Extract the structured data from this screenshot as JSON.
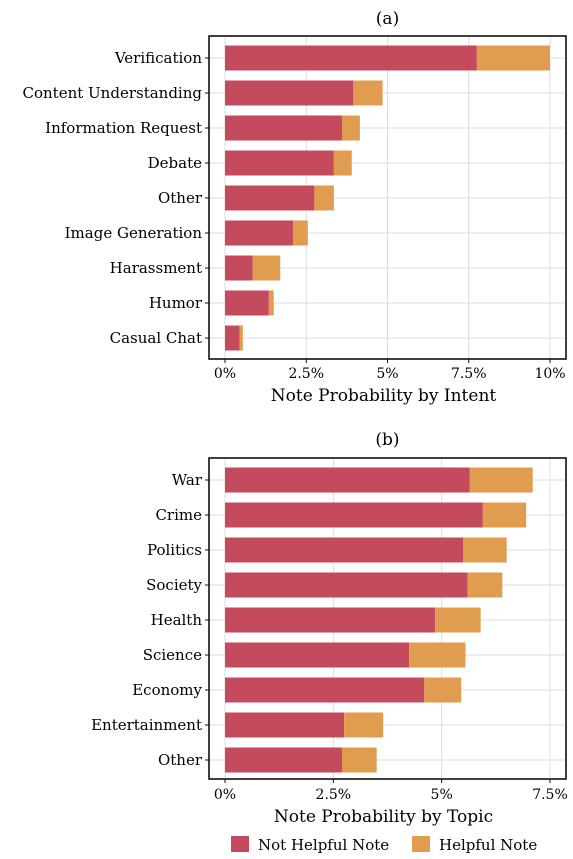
{
  "colors": {
    "not_helpful": "#c44a5e",
    "helpful": "#e09d4f",
    "grid": "#dcdcdc",
    "frame": "#111111"
  },
  "legend": {
    "not_helpful_label": "Not Helpful Note",
    "helpful_label": "Helpful Note"
  },
  "chart_data": [
    {
      "type": "bar",
      "orientation": "horizontal",
      "stacked": true,
      "title": "(a)",
      "xlabel": "Note Probability by Intent",
      "categories": [
        "Verification",
        "Content Understanding",
        "Information Request",
        "Debate",
        "Other",
        "Image Generation",
        "Harassment",
        "Humor",
        "Casual Chat"
      ],
      "series": [
        {
          "name": "Not Helpful Note",
          "values": [
            7.75,
            3.95,
            3.6,
            3.35,
            2.75,
            2.1,
            0.85,
            1.35,
            0.45
          ]
        },
        {
          "name": "Helpful Note",
          "values": [
            2.25,
            0.9,
            0.55,
            0.55,
            0.6,
            0.45,
            0.85,
            0.15,
            0.1
          ]
        }
      ],
      "xlim": [
        0,
        10
      ],
      "xticks": [
        0,
        2.5,
        5,
        7.5,
        10
      ],
      "xtick_labels": [
        "0%",
        "2.5%",
        "5%",
        "7.5%",
        "10%"
      ],
      "grid": true
    },
    {
      "type": "bar",
      "orientation": "horizontal",
      "stacked": true,
      "title": "(b)",
      "xlabel": "Note Probability by Topic",
      "categories": [
        "War",
        "Crime",
        "Politics",
        "Society",
        "Health",
        "Science",
        "Economy",
        "Entertainment",
        "Other"
      ],
      "series": [
        {
          "name": "Not Helpful Note",
          "values": [
            5.65,
            5.95,
            5.5,
            5.6,
            4.85,
            4.25,
            4.6,
            2.75,
            2.7
          ]
        },
        {
          "name": "Helpful Note",
          "values": [
            1.45,
            1.0,
            1.0,
            0.8,
            1.05,
            1.3,
            0.85,
            0.9,
            0.8
          ]
        }
      ],
      "xlim": [
        0,
        7.5
      ],
      "xticks": [
        0,
        2.5,
        5,
        7.5
      ],
      "xtick_labels": [
        "0%",
        "2.5%",
        "5%",
        "7.5%"
      ],
      "grid": true
    }
  ]
}
